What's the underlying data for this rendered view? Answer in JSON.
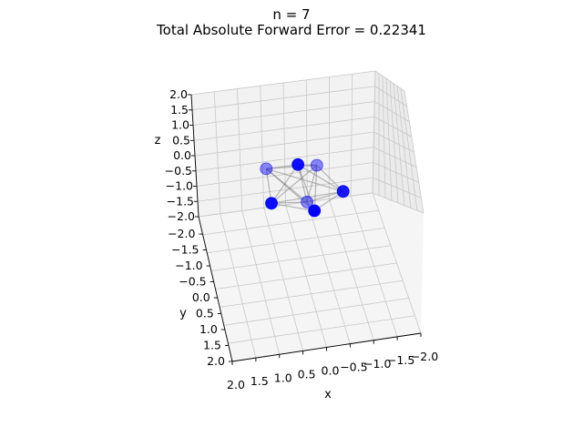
{
  "chart_data": {
    "type": "scatter",
    "projection": "3d",
    "title_line1": "n = 7",
    "title_line2": "Total Absolute Forward Error = 0.22341",
    "xlabel": "x",
    "ylabel": "y",
    "zlabel": "z",
    "xlim": [
      -2.0,
      2.0
    ],
    "ylim": [
      -2.0,
      1.5
    ],
    "zlim": [
      -2.0,
      2.0
    ],
    "x_ticks": [
      "2.0",
      "1.5",
      "1.0",
      "0.5",
      "0.0",
      "−0.5",
      "−1.0",
      "−1.5",
      "−2.0"
    ],
    "y_ticks": [
      "−2.0",
      "−1.5",
      "−1.0",
      "−0.5",
      "0.0",
      "0.5",
      "1.0",
      "1.5",
      "2.0"
    ],
    "z_ticks": [
      "2.0",
      "1.5",
      "1.0",
      "0.5",
      "0.0",
      "−0.5",
      "−1.0",
      "−1.5",
      "−2.0"
    ],
    "grid": true,
    "marker_color": "#0000ff",
    "edge_color": "#808080",
    "points": [
      {
        "x": 0.1,
        "y": -0.55,
        "z": 0.75
      },
      {
        "x": -0.35,
        "y": -0.55,
        "z": 0.7
      },
      {
        "x": 0.85,
        "y": -0.6,
        "z": 0.3
      },
      {
        "x": -0.9,
        "y": 0.05,
        "z": 0.1
      },
      {
        "x": 0.85,
        "y": 0.35,
        "z": -0.1
      },
      {
        "x": 0.0,
        "y": 0.35,
        "z": 0.0
      },
      {
        "x": -0.15,
        "y": 0.55,
        "z": -0.2
      }
    ],
    "point_alpha": [
      0.95,
      0.45,
      0.45,
      0.9,
      0.95,
      0.45,
      1.0
    ]
  }
}
